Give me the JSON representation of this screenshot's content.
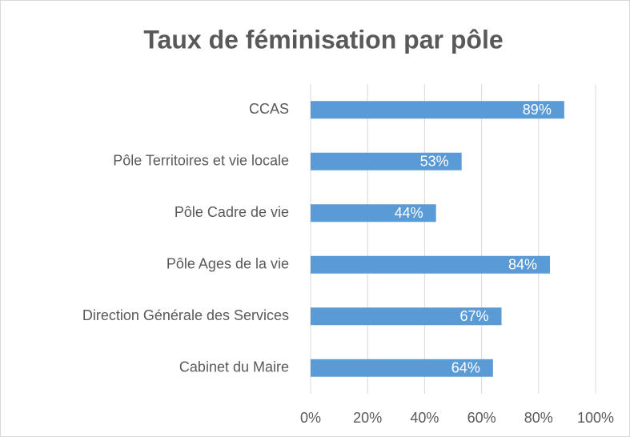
{
  "chart_data": {
    "type": "barh",
    "title": "Taux de féminisation par pôle",
    "categories": [
      "CCAS",
      "Pôle Territoires et vie locale",
      "Pôle Cadre de vie",
      "Pôle Ages de la vie",
      "Direction Générale des Services",
      "Cabinet du Maire"
    ],
    "values": [
      89,
      53,
      44,
      84,
      67,
      64
    ],
    "value_labels": [
      "89%",
      "53%",
      "44%",
      "84%",
      "67%",
      "64%"
    ],
    "color": "#5b9bd5",
    "xlim": [
      0,
      100
    ],
    "xticks": [
      {
        "value": 0,
        "label": "0%"
      },
      {
        "value": 20,
        "label": "20%"
      },
      {
        "value": 40,
        "label": "40%"
      },
      {
        "value": 60,
        "label": "60%"
      },
      {
        "value": 80,
        "label": "80%"
      },
      {
        "value": 100,
        "label": "100%"
      }
    ],
    "grid": true
  }
}
